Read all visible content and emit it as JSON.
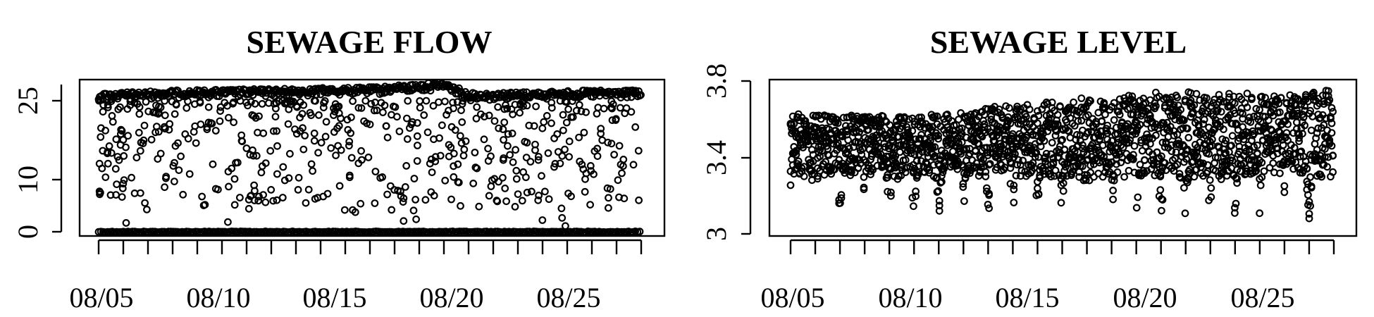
{
  "chart_data": [
    {
      "type": "scatter",
      "title": "SEWAGE FLOW",
      "xlabel": "",
      "ylabel": "",
      "x_domain": [
        "08/05",
        "08/27"
      ],
      "xlim": [
        "08/04",
        "08/28"
      ],
      "ylim": [
        0,
        27
      ],
      "y_ticks": [
        0,
        10,
        25
      ],
      "x_ticks": [
        "08/05",
        "08/10",
        "08/15",
        "08/20",
        "08/25"
      ],
      "x_minor_ticks": 23,
      "grid": false,
      "series": [
        {
          "baseline_level": 0,
          "upper_band": [
            {
              "x": "08/05",
              "y": 26.5
            },
            {
              "x": "08/08",
              "y": 27.0
            },
            {
              "x": "08/12",
              "y": 27.3
            },
            {
              "x": "08/16",
              "y": 27.6
            },
            {
              "x": "08/19",
              "y": 28.6
            },
            {
              "x": "08/20",
              "y": 26.5
            },
            {
              "x": "08/25",
              "y": 27.0
            },
            {
              "x": "08/27",
              "y": 27.0
            }
          ],
          "scatter_range": [
            5,
            25
          ]
        }
      ]
    },
    {
      "type": "scatter",
      "title": "SEWAGE LEVEL",
      "xlabel": "",
      "ylabel": "",
      "x_domain": [
        "08/05",
        "08/27"
      ],
      "xlim": [
        "08/04",
        "08/28"
      ],
      "ylim": [
        3.0,
        3.8
      ],
      "y_ticks": [
        3.0,
        3.4,
        3.8
      ],
      "x_ticks": [
        "08/05",
        "08/10",
        "08/15",
        "08/20",
        "08/25"
      ],
      "x_minor_ticks": 23,
      "grid": false,
      "series": [
        {
          "daily_cycle": true,
          "upper_envelope": [
            {
              "x": "08/05",
              "y": 3.62
            },
            {
              "x": "08/10",
              "y": 3.62
            },
            {
              "x": "08/15",
              "y": 3.68
            },
            {
              "x": "08/20",
              "y": 3.74
            },
            {
              "x": "08/25",
              "y": 3.72
            },
            {
              "x": "08/27",
              "y": 3.76
            }
          ],
          "lower_envelope": [
            {
              "x": "08/05",
              "y": 3.13
            },
            {
              "x": "08/10",
              "y": 3.12
            },
            {
              "x": "08/15",
              "y": 3.15
            },
            {
              "x": "08/20",
              "y": 3.1
            },
            {
              "x": "08/25",
              "y": 3.08
            },
            {
              "x": "08/27",
              "y": 3.1
            }
          ]
        }
      ]
    }
  ]
}
